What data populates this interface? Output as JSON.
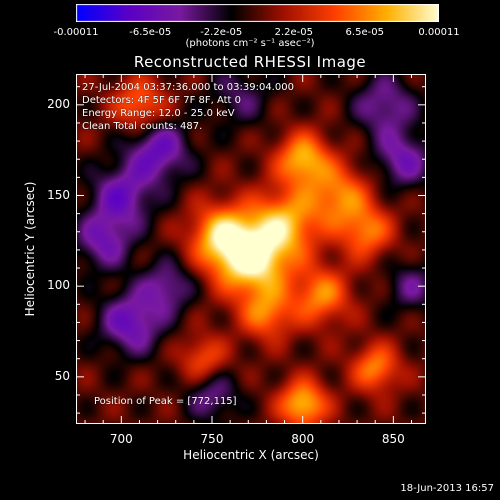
{
  "colorbar": {
    "ticks": [
      "-0.00011",
      "-6.5e-05",
      "-2.2e-05",
      "2.2e-05",
      "6.5e-05",
      "0.00011"
    ],
    "tick_values": [
      -0.00011,
      -6.5e-05,
      -2.2e-05,
      2.2e-05,
      6.5e-05,
      0.00011
    ],
    "label": "(photons cm⁻² s⁻¹ asec⁻²)",
    "colors": [
      "#0000ff",
      "#5a00c8",
      "#7a1aa0",
      "#000000",
      "#a01000",
      "#ff4000",
      "#ffb000",
      "#ffffd0"
    ]
  },
  "chart_data": {
    "type": "heatmap",
    "title": "Reconstructed RHESSI Image",
    "xlabel": "Heliocentric X (arcsec)",
    "ylabel": "Heliocentric Y (arcsec)",
    "xlim": [
      675,
      868
    ],
    "ylim": [
      24,
      217
    ],
    "xticks": [
      700,
      750,
      800,
      850
    ],
    "yticks": [
      50,
      100,
      150,
      200
    ],
    "value_range": [
      -0.00011,
      0.00011
    ],
    "peak": [
      772,
      115
    ],
    "annotations": [
      "27-Jul-2004 03:37:36.000 to 03:39:04.000",
      "Detectors: 4F 5F 6F 7F 8F, Att 0",
      "Energy Range: 12.0 - 25.0 keV",
      "Clean     Total counts: 487.",
      "Position of Peak = [772,115]"
    ],
    "sources": [
      {
        "x": 772,
        "y": 115,
        "amp": 1.0,
        "sigma": 14
      },
      {
        "x": 755,
        "y": 128,
        "amp": 0.75,
        "sigma": 12
      },
      {
        "x": 790,
        "y": 135,
        "amp": 0.7,
        "sigma": 13
      },
      {
        "x": 800,
        "y": 170,
        "amp": 0.75,
        "sigma": 10
      },
      {
        "x": 820,
        "y": 150,
        "amp": 0.6,
        "sigma": 12
      },
      {
        "x": 835,
        "y": 130,
        "amp": 0.55,
        "sigma": 10
      },
      {
        "x": 810,
        "y": 95,
        "amp": 0.6,
        "sigma": 11
      },
      {
        "x": 780,
        "y": 85,
        "amp": 0.55,
        "sigma": 10
      },
      {
        "x": 800,
        "y": 35,
        "amp": 0.8,
        "sigma": 9
      },
      {
        "x": 840,
        "y": 55,
        "amp": 0.6,
        "sigma": 9
      },
      {
        "x": 745,
        "y": 60,
        "amp": 0.45,
        "sigma": 9
      },
      {
        "x": 710,
        "y": 200,
        "amp": 0.55,
        "sigma": 10
      },
      {
        "x": 700,
        "y": 150,
        "amp": -0.55,
        "sigma": 12
      },
      {
        "x": 720,
        "y": 175,
        "amp": -0.6,
        "sigma": 12
      },
      {
        "x": 690,
        "y": 125,
        "amp": -0.5,
        "sigma": 11
      },
      {
        "x": 705,
        "y": 80,
        "amp": -0.6,
        "sigma": 12
      },
      {
        "x": 725,
        "y": 100,
        "amp": -0.45,
        "sigma": 10
      },
      {
        "x": 845,
        "y": 200,
        "amp": -0.45,
        "sigma": 12
      },
      {
        "x": 855,
        "y": 170,
        "amp": -0.5,
        "sigma": 11
      },
      {
        "x": 765,
        "y": 205,
        "amp": -0.3,
        "sigma": 12
      },
      {
        "x": 860,
        "y": 100,
        "amp": -0.35,
        "sigma": 10
      },
      {
        "x": 750,
        "y": 40,
        "amp": -0.4,
        "sigma": 10
      }
    ]
  },
  "footer": {
    "datestamp": "18-Jun-2013 16:57"
  }
}
